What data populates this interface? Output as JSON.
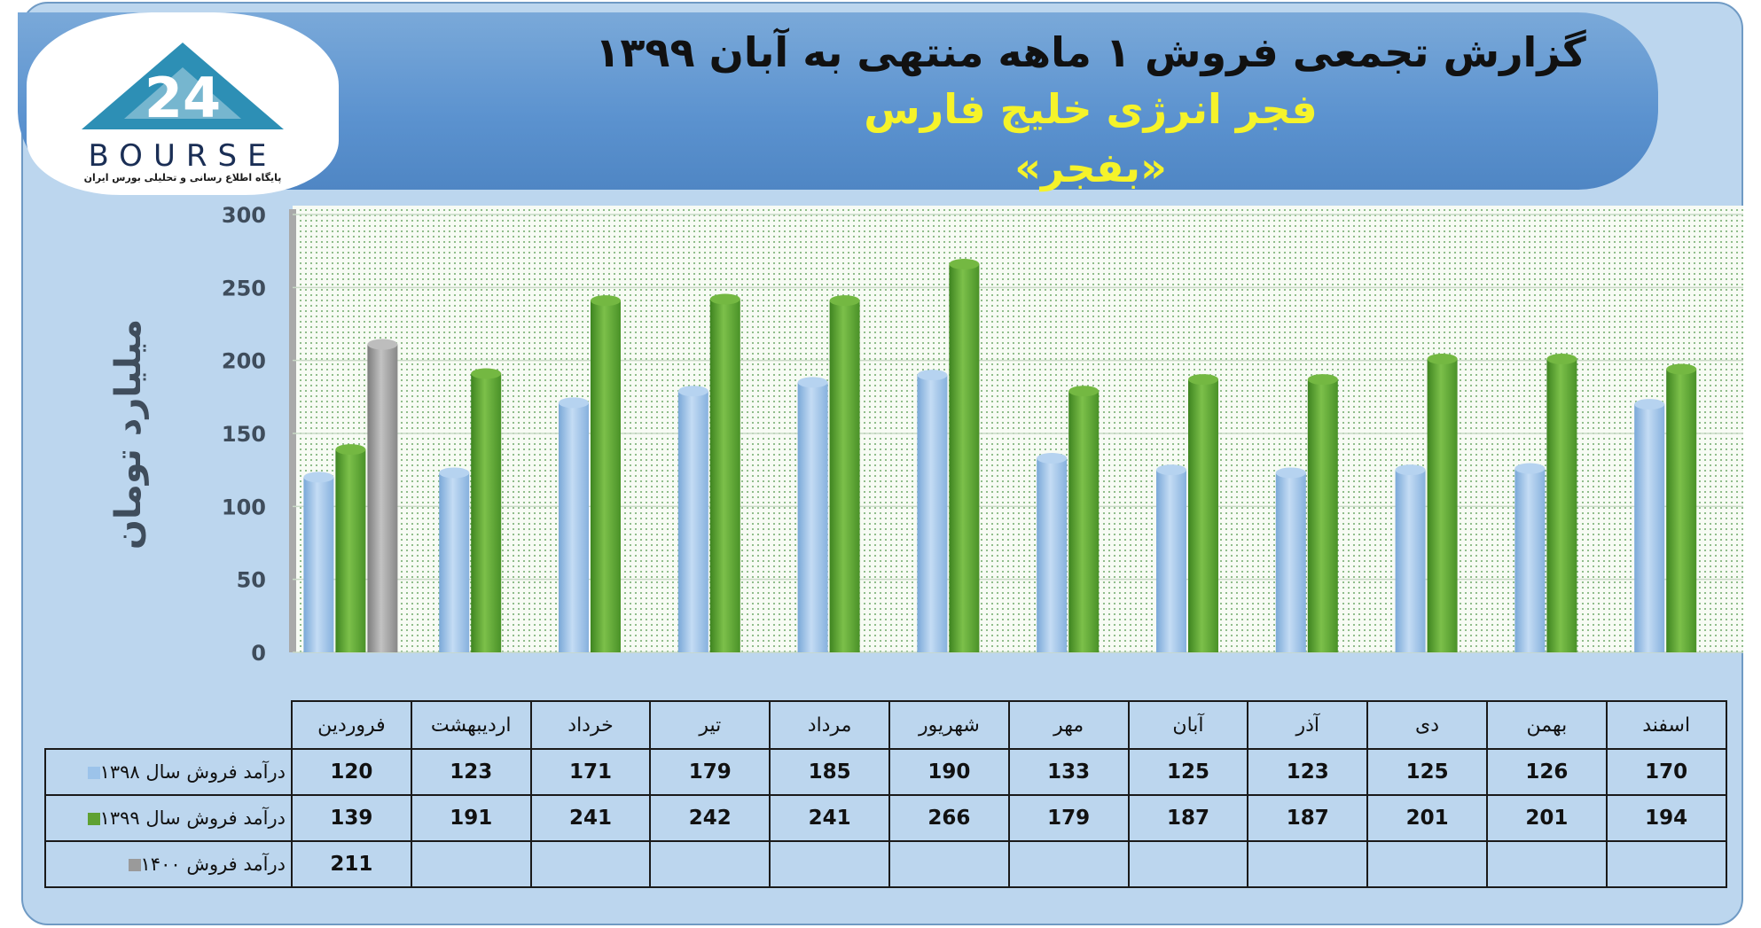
{
  "header": {
    "title": "گزارش تجمعی فروش ۱ ماهه منتهی به آبان ۱۳۹۹",
    "company": "فجر انرژی خلیج فارس",
    "symbol": "«بفجر»"
  },
  "logo": {
    "word": "BOURSE",
    "subtitle": "پایگاه اطلاع رسانی و تحلیلی بورس ایران"
  },
  "chart_data": {
    "type": "bar",
    "ylabel": "میلیارد تومان",
    "ylim": [
      0,
      300
    ],
    "yticks": [
      0,
      50,
      100,
      150,
      200,
      250,
      300
    ],
    "grid": true,
    "categories": [
      "فروردین",
      "اردیبهشت",
      "خرداد",
      "تیر",
      "مرداد",
      "شهریور",
      "مهر",
      "آبان",
      "آذر",
      "دی",
      "بهمن",
      "اسفند"
    ],
    "series": [
      {
        "name": "درآمد فروش سال ۱۳۹۸",
        "color": "#9cc3ea",
        "values": [
          120,
          123,
          171,
          179,
          185,
          190,
          133,
          125,
          123,
          125,
          126,
          170
        ]
      },
      {
        "name": "درآمد فروش سال ۱۳۹۹",
        "color": "#5fa132",
        "values": [
          139,
          191,
          241,
          242,
          241,
          266,
          179,
          187,
          187,
          201,
          201,
          194
        ]
      },
      {
        "name": "درآمد فروش ۱۴۰۰",
        "color": "#9a9a9a",
        "values": [
          211,
          null,
          null,
          null,
          null,
          null,
          null,
          null,
          null,
          null,
          null,
          null
        ]
      }
    ]
  }
}
